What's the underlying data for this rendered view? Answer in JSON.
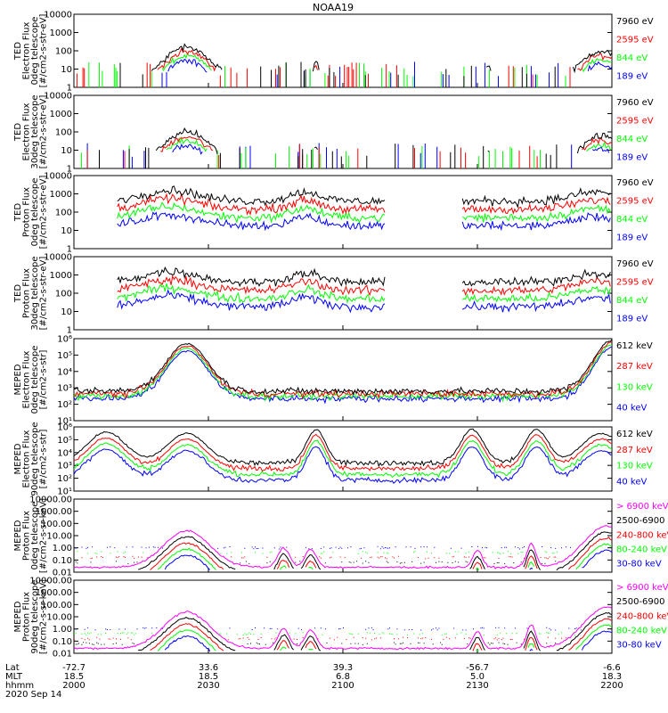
{
  "title": "NOAA19",
  "footer": {
    "row_labels": [
      "Lat",
      "MLT",
      "hhmm"
    ],
    "date": "2020 Sep 14",
    "times": [
      {
        "lat": "-72.7",
        "mlt": "18.5",
        "hhmm": "2000"
      },
      {
        "lat": "33.6",
        "mlt": "18.5",
        "hhmm": "2030"
      },
      {
        "lat": "39.3",
        "mlt": "6.8",
        "hhmm": "2100"
      },
      {
        "lat": "-56.7",
        "mlt": "5.0",
        "hhmm": "2130"
      },
      {
        "lat": "-6.6",
        "mlt": "18.3",
        "hhmm": "2200"
      }
    ]
  },
  "colors": {
    "black": "#000000",
    "red": "#ff0000",
    "green": "#00ff00",
    "blue": "#0000ff",
    "magenta": "#ff00ff"
  },
  "chart_data": [
    {
      "type": "line",
      "ylabel": [
        "TED",
        "Electron Flux",
        "0deg telescope",
        "[#/cm2-s-str-eV]"
      ],
      "yscale": "log",
      "ytick_labels": [
        "1",
        "10",
        "100",
        "1000",
        "10000"
      ],
      "series": [
        {
          "name": "7960 eV",
          "color": "black"
        },
        {
          "name": "2595 eV",
          "color": "red"
        },
        {
          "name": "844 eV",
          "color": "green"
        },
        {
          "name": "189 eV",
          "color": "blue"
        }
      ]
    },
    {
      "type": "line",
      "ylabel": [
        "TED",
        "Electron Flux",
        "30deg telescope",
        "[#/cm2-s-str-eV]"
      ],
      "yscale": "log",
      "ytick_labels": [
        "1",
        "10",
        "100",
        "1000",
        "10000"
      ],
      "series": [
        {
          "name": "7960 eV",
          "color": "black"
        },
        {
          "name": "2595 eV",
          "color": "red"
        },
        {
          "name": "844 eV",
          "color": "green"
        },
        {
          "name": "189 eV",
          "color": "blue"
        }
      ]
    },
    {
      "type": "line",
      "ylabel": [
        "TED",
        "Proton Flux",
        "0deg telescope",
        "[#/cm2-s-str-eV]"
      ],
      "yscale": "log",
      "ytick_labels": [
        "1",
        "10",
        "100",
        "1000",
        "10000"
      ],
      "series": [
        {
          "name": "7960 eV",
          "color": "black"
        },
        {
          "name": "2595 eV",
          "color": "red"
        },
        {
          "name": "844 eV",
          "color": "green"
        },
        {
          "name": "189 eV",
          "color": "blue"
        }
      ]
    },
    {
      "type": "line",
      "ylabel": [
        "TED",
        "Proton Flux",
        "30deg telescope",
        "[#/cm2-s-str-eV]"
      ],
      "yscale": "log",
      "ytick_labels": [
        "1",
        "10",
        "100",
        "1000",
        "10000"
      ],
      "series": [
        {
          "name": "7960 eV",
          "color": "black"
        },
        {
          "name": "2595 eV",
          "color": "red"
        },
        {
          "name": "844 eV",
          "color": "green"
        },
        {
          "name": "189 eV",
          "color": "blue"
        }
      ]
    },
    {
      "type": "line",
      "ylabel": [
        "MEPED",
        "Electron Flux",
        "0deg telescope",
        "[#/cm2-s-str]"
      ],
      "yscale": "log",
      "ytick_labels": [
        "10¹",
        "10²",
        "10³",
        "10⁴",
        "10⁵",
        "10⁶"
      ],
      "series": [
        {
          "name": "612 keV",
          "color": "black"
        },
        {
          "name": "287 keV",
          "color": "red"
        },
        {
          "name": "130 keV",
          "color": "green"
        },
        {
          "name": "40 keV",
          "color": "blue"
        }
      ]
    },
    {
      "type": "line",
      "ylabel": [
        "MEPED",
        "Electron Flux",
        "90deg telescope",
        "[#/cm2-s-str]"
      ],
      "yscale": "log",
      "ytick_labels": [
        "10¹",
        "10²",
        "10³",
        "10⁴",
        "10⁵",
        "10⁶"
      ],
      "series": [
        {
          "name": "612 keV",
          "color": "black"
        },
        {
          "name": "287 keV",
          "color": "red"
        },
        {
          "name": "130 keV",
          "color": "green"
        },
        {
          "name": "40 keV",
          "color": "blue"
        }
      ]
    },
    {
      "type": "line",
      "ylabel": [
        "MEPED",
        "Proton Flux",
        "0deg telescope",
        "[#/cm2-s-sr-keV]"
      ],
      "yscale": "log",
      "ytick_labels": [
        "0.01",
        "0.10",
        "1.00",
        "10.00",
        "100.00",
        "1000.00",
        "10000.00"
      ],
      "series": [
        {
          "name": "> 6900 keV",
          "color": "magenta"
        },
        {
          "name": "2500-6900",
          "color": "black"
        },
        {
          "name": "240-800 keV",
          "color": "red"
        },
        {
          "name": "80-240 keV",
          "color": "green"
        },
        {
          "name": "30-80 keV",
          "color": "blue"
        }
      ]
    },
    {
      "type": "line",
      "ylabel": [
        "MEPED",
        "Proton Flux",
        "90deg telescope",
        "[#/cm2-s-sr-keV]"
      ],
      "yscale": "log",
      "ytick_labels": [
        "0.01",
        "0.10",
        "1.00",
        "10.00",
        "100.00",
        "1000.00",
        "10000.00"
      ],
      "series": [
        {
          "name": "> 6900 keV",
          "color": "magenta"
        },
        {
          "name": "2500-6900",
          "color": "black"
        },
        {
          "name": "240-800 keV",
          "color": "red"
        },
        {
          "name": "80-240 keV",
          "color": "green"
        },
        {
          "name": "30-80 keV",
          "color": "blue"
        }
      ]
    }
  ]
}
